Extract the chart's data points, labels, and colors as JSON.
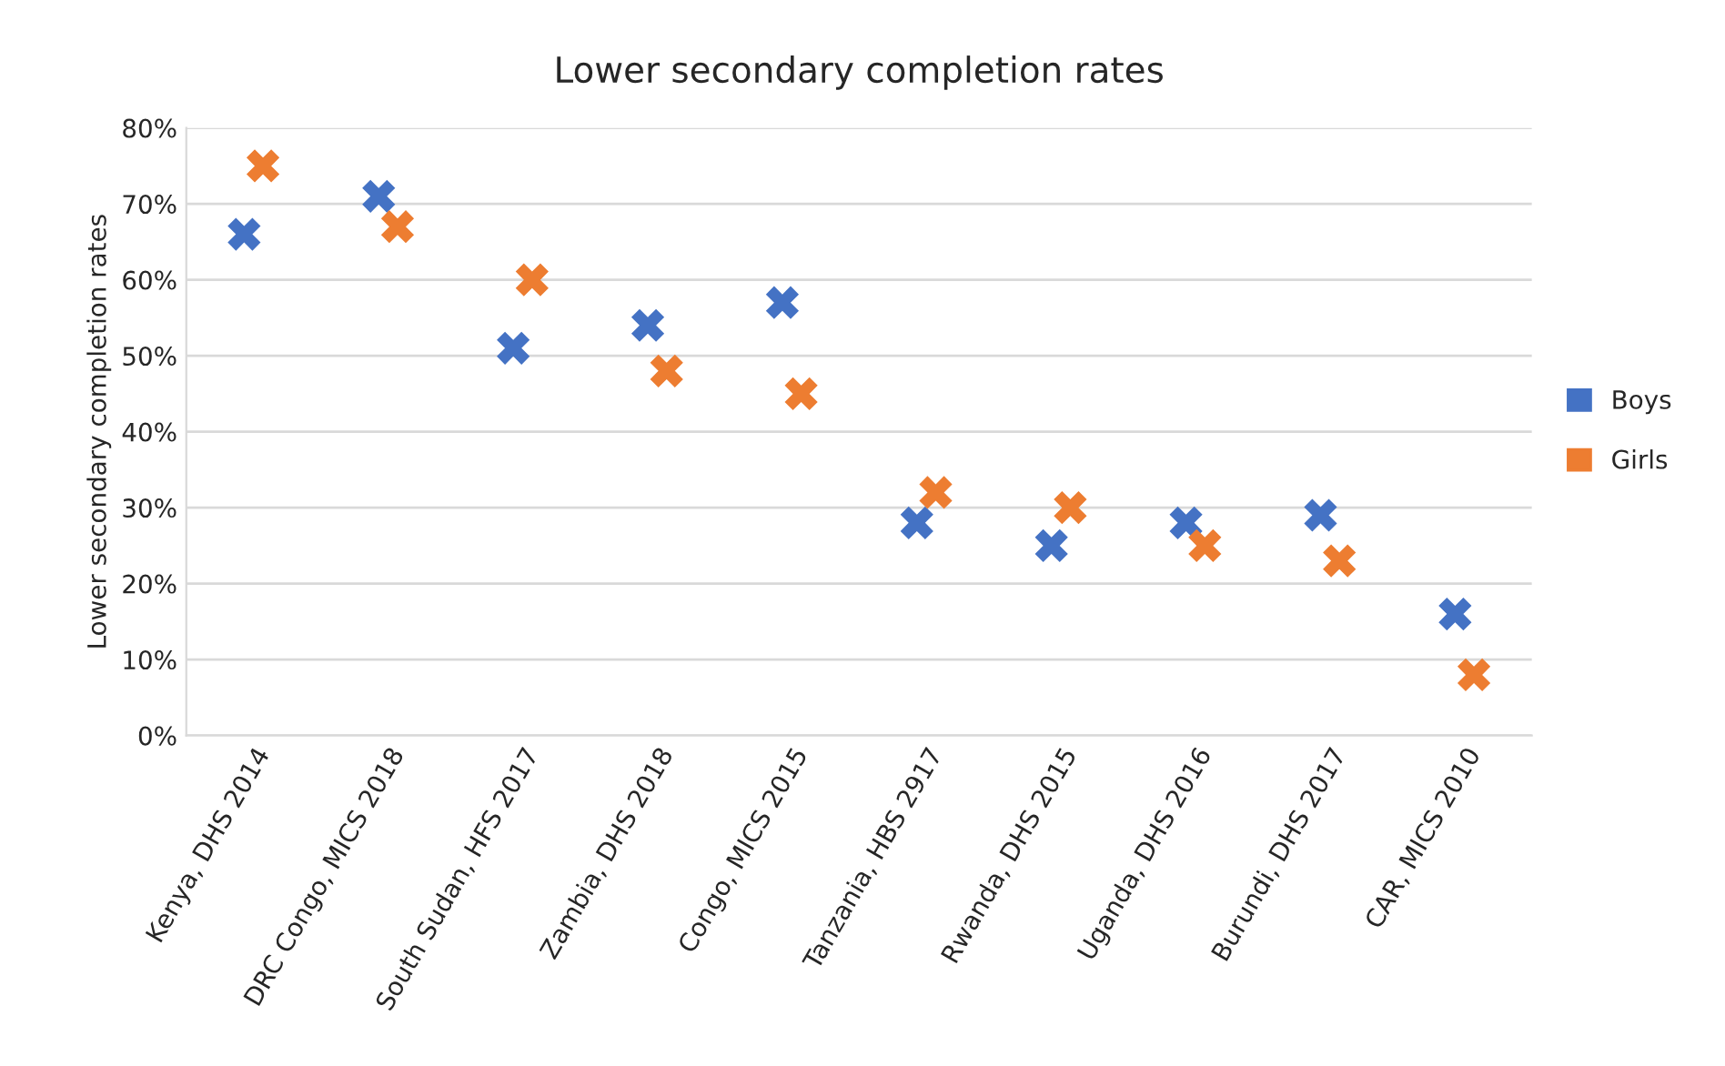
{
  "chart_data": {
    "type": "scatter",
    "title": "Lower secondary completion rates",
    "ylabel": "Lower secondary completion rates",
    "categories": [
      "Kenya, DHS 2014",
      "DRC Congo, MICS 2018",
      "South Sudan, HFS 2017",
      "Zambia, DHS 2018",
      "Congo, MICS 2015",
      "Tanzania, HBS 2917",
      "Rwanda, DHS 2015",
      "Uganda, DHS 2016",
      "Burundi, DHS 2017",
      "CAR, MICS 2010"
    ],
    "series": [
      {
        "name": "Boys",
        "color": "#4472c4",
        "values": [
          66,
          71,
          51,
          54,
          57,
          28,
          25,
          28,
          29,
          16
        ]
      },
      {
        "name": "Girls",
        "color": "#ed7d31",
        "values": [
          75,
          67,
          60,
          48,
          45,
          32,
          30,
          25,
          23,
          8
        ]
      }
    ],
    "ylim": [
      0,
      80
    ],
    "yticks": [
      {
        "value": 0,
        "label": "0%"
      },
      {
        "value": 10,
        "label": "10%"
      },
      {
        "value": 20,
        "label": "20%"
      },
      {
        "value": 30,
        "label": "30%"
      },
      {
        "value": 40,
        "label": "40%"
      },
      {
        "value": 50,
        "label": "50%"
      },
      {
        "value": 60,
        "label": "60%"
      },
      {
        "value": 70,
        "label": "70%"
      },
      {
        "value": 80,
        "label": "80%"
      }
    ],
    "grid": "y",
    "legend": "right",
    "marker": "cross"
  }
}
